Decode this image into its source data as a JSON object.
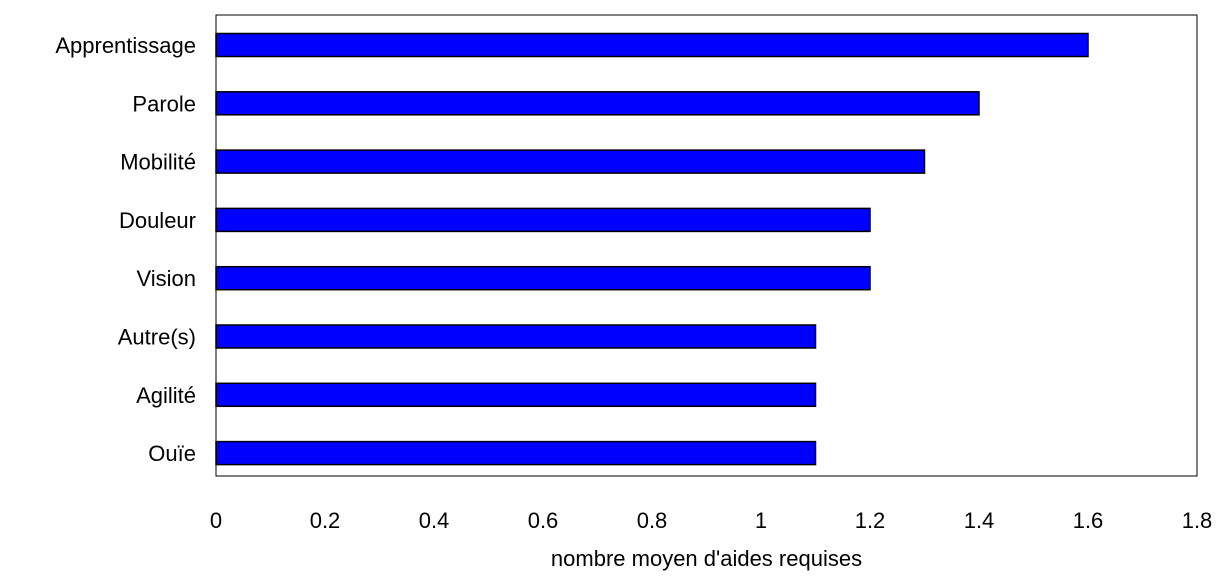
{
  "chart_data": {
    "type": "bar",
    "orientation": "horizontal",
    "categories": [
      "Apprentissage",
      "Parole",
      "Mobilité",
      "Douleur",
      "Vision",
      "Autre(s)",
      "Agilité",
      "Ouïe"
    ],
    "values": [
      1.6,
      1.4,
      1.3,
      1.2,
      1.2,
      1.1,
      1.1,
      1.1
    ],
    "title": "",
    "xlabel": "nombre moyen d'aides requises",
    "ylabel": "",
    "xlim": [
      0,
      1.8
    ],
    "xticks": [
      "0",
      "0.2",
      "0.4",
      "0.6",
      "0.8",
      "1",
      "1.2",
      "1.4",
      "1.6",
      "1.8"
    ],
    "grid": false,
    "legend": "none",
    "colors": {
      "bar_fill": "#0000ff",
      "bar_stroke": "#000000",
      "frame": "#000000",
      "background": "#ffffff"
    }
  }
}
